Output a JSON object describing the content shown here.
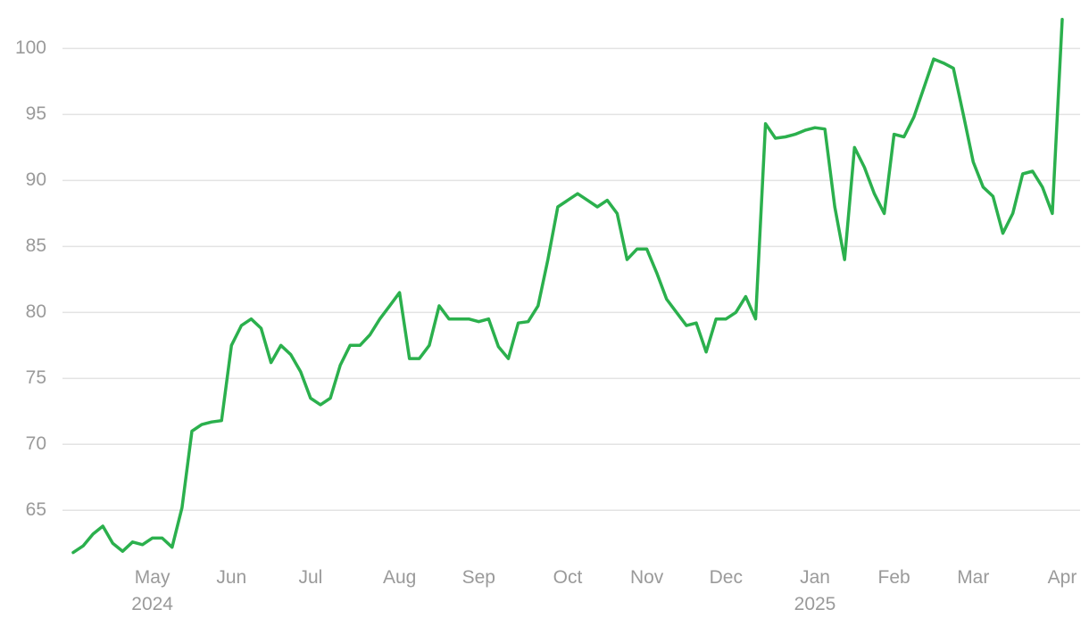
{
  "chart_data": {
    "type": "line",
    "color": "#2bb04d",
    "grid": true,
    "ylim": [
      61.1,
      103
    ],
    "yticks": [
      65,
      70,
      75,
      80,
      85,
      90,
      95,
      100
    ],
    "categories": [
      null,
      null,
      null,
      null,
      null,
      null,
      null,
      null,
      "May\n2024",
      null,
      null,
      null,
      null,
      null,
      null,
      null,
      "Jun",
      null,
      null,
      null,
      null,
      null,
      null,
      null,
      "Jul",
      null,
      null,
      null,
      null,
      null,
      null,
      null,
      null,
      "Aug",
      null,
      null,
      null,
      null,
      null,
      null,
      null,
      "Sep",
      null,
      null,
      null,
      null,
      null,
      null,
      null,
      null,
      "Oct",
      null,
      null,
      null,
      null,
      null,
      null,
      null,
      "Nov",
      null,
      null,
      null,
      null,
      null,
      null,
      null,
      "Dec",
      null,
      null,
      null,
      null,
      null,
      null,
      null,
      null,
      "Jan\n2025",
      null,
      null,
      null,
      null,
      null,
      null,
      null,
      "Feb",
      null,
      null,
      null,
      null,
      null,
      null,
      null,
      "Mar",
      null,
      null,
      null,
      null,
      null,
      null,
      null,
      null,
      "Apr"
    ],
    "values": [
      61.8,
      62.3,
      63.2,
      63.8,
      62.5,
      61.9,
      62.6,
      62.4,
      62.9,
      62.9,
      62.2,
      65.2,
      71.0,
      71.5,
      71.7,
      71.8,
      77.5,
      79.0,
      79.5,
      78.8,
      76.2,
      77.5,
      76.8,
      75.5,
      73.5,
      73.0,
      73.5,
      76.0,
      77.5,
      77.5,
      78.3,
      79.5,
      80.5,
      81.5,
      76.5,
      76.5,
      77.5,
      80.5,
      79.5,
      79.5,
      79.5,
      79.3,
      79.5,
      77.4,
      76.5,
      79.2,
      79.3,
      80.5,
      84.0,
      88.0,
      88.5,
      89.0,
      88.5,
      88.0,
      88.5,
      87.5,
      84.0,
      84.8,
      84.8,
      83.0,
      81.0,
      80.0,
      79.0,
      79.2,
      77.0,
      79.5,
      79.5,
      80.0,
      81.2,
      79.5,
      94.3,
      93.2,
      93.3,
      93.5,
      93.8,
      94.0,
      93.9,
      88.0,
      84.0,
      92.5,
      91.0,
      89.0,
      87.5,
      93.5,
      93.3,
      94.8,
      97.0,
      99.2,
      98.9,
      98.5,
      95.0,
      91.4,
      89.5,
      88.8,
      86.0,
      87.5,
      90.5,
      90.7,
      89.5,
      87.5,
      102.2
    ]
  }
}
